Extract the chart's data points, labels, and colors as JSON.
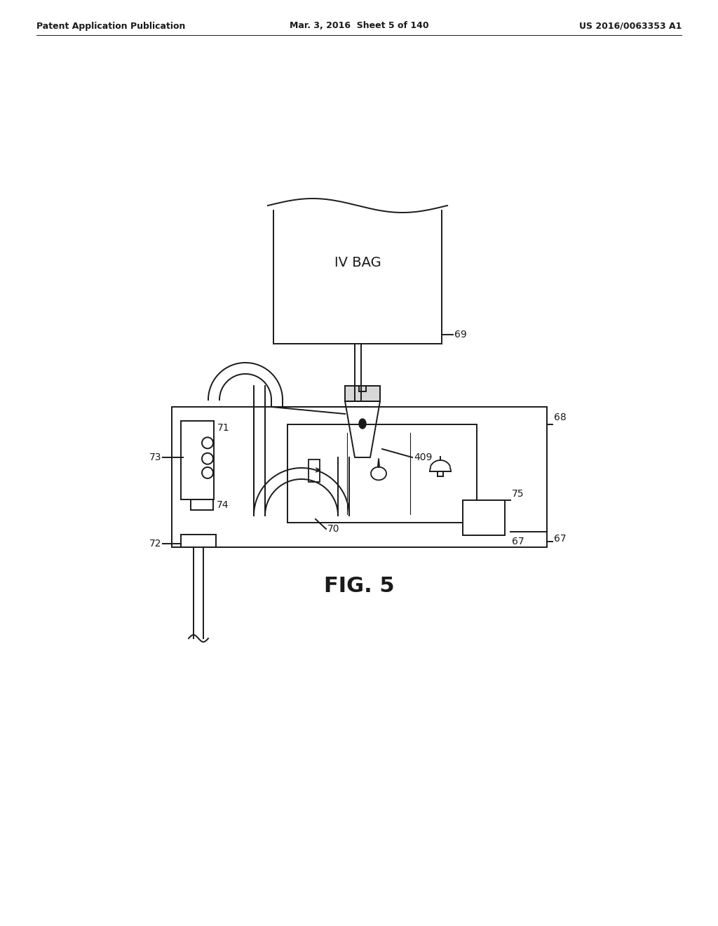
{
  "bg_color": "#ffffff",
  "line_color": "#1a1a1a",
  "header_left": "Patent Application Publication",
  "header_center": "Mar. 3, 2016  Sheet 5 of 140",
  "header_right": "US 2016/0063353 A1",
  "fig_label": "FIG. 5",
  "iv_bag_label": "IV BAG",
  "n67": "67",
  "n68": "68",
  "n69": "69",
  "n70": "70",
  "n71": "71",
  "n72": "72",
  "n73": "73",
  "n74": "74",
  "n75": "75",
  "n409": "409"
}
